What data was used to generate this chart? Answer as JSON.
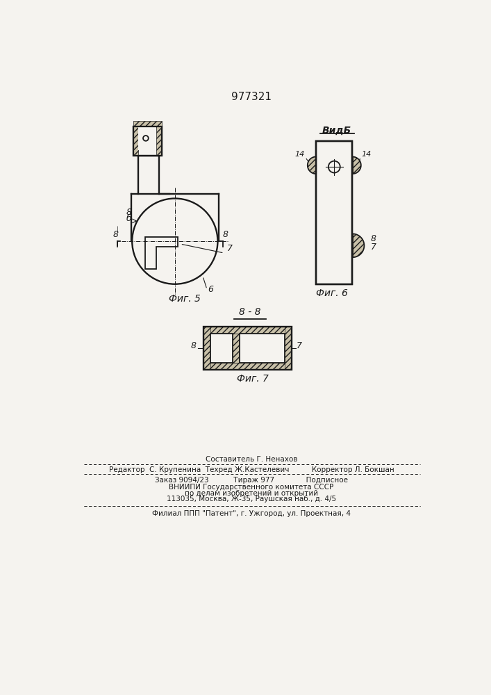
{
  "title": "977321",
  "bg_color": "#f5f3ef",
  "line_color": "#1a1a1a",
  "fig5_label": "Фиг. 5",
  "fig6_label": "Фиг. 6",
  "fig7_label": "Фиг. 7",
  "vidb_label": "ВидБ",
  "bb_label": "8 - 8",
  "footer_line0": "Составитель Г. Ненахов",
  "footer_line1": "Редактор  С. Крупенина  Техред Ж.Кастелевич          Корректор Л. Бокшан",
  "footer_line2": "Заказ 9094/23           Тираж 977              Подписное",
  "footer_line3": "ВНИИПИ Государственного комитета СССР",
  "footer_line4": "по делам изобретений и открытий",
  "footer_line5": "113035, Москва, Ж-35, Раушская наб., д. 4/5",
  "footer_line6": "Филиал ППП \"Патент\", г. Ужгород, ул. Проектная, 4"
}
